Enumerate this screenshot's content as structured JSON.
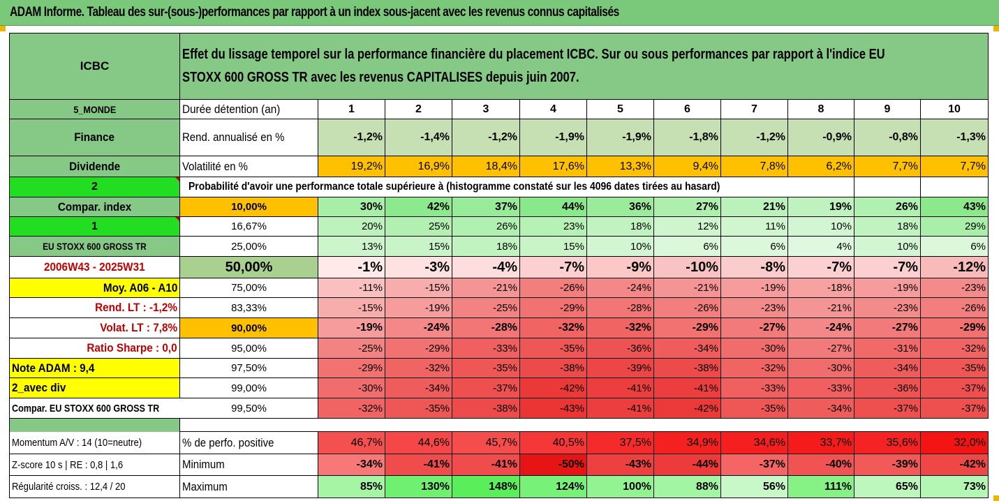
{
  "title": "ADAM Informe. Tableau des sur-(sous-)performances par rapport à un index sous-jacent avec les revenus connus capitalisés",
  "header": {
    "asset": "ICBC",
    "description_line1": "Effet du lissage temporel sur la performance financière du placement ICBC. Sur ou sous performances par rapport à l'indice EU",
    "description_line2": "STOXX 600 GROSS TR avec les revenus CAPITALISES depuis juin 2007."
  },
  "left_labels": {
    "zone": "5_MONDE",
    "sector": "Finance",
    "dividend": "Dividende",
    "val2": "2",
    "compar_index": "Compar. index",
    "val1": "1",
    "index_name": "EU STOXX 600 GROSS TR",
    "period": "2006W43 - 2025W31",
    "moy": "Moy. A06 - A10",
    "rend_lt": "Rend. LT :   -1,2%",
    "volat_lt": "Volat. LT :   7,8%",
    "sharpe": "Ratio Sharpe :   0,0",
    "note": "Note ADAM : 9,4",
    "avec_div": "2_avec div",
    "compar_full": "Compar. EU STOXX 600 GROSS TR",
    "momentum": "Momentum A/V : 14 (10=neutre)",
    "zscore": "Z-score 10 s  | RE : 0,8  | 1,6",
    "regularite": "Régularité croiss. : 12,4 / 20"
  },
  "row_labels": {
    "duree": "Durée détention (an)",
    "rend": "Rend. annualisé en %",
    "volat": "Volatilité en %",
    "proba": "Probabilité d'avoir une performance totale supérieure à (histogramme constaté sur les 4096 dates tirées au hasard)",
    "pct_pos": "% de perfo. positive",
    "minimum": "Minimum",
    "maximum": "Maximum"
  },
  "years": [
    "1",
    "2",
    "3",
    "4",
    "5",
    "6",
    "7",
    "8",
    "9",
    "10"
  ],
  "rend": [
    "-1,2%",
    "-1,4%",
    "-1,2%",
    "-1,9%",
    "-1,9%",
    "-1,8%",
    "-1,2%",
    "-0,9%",
    "-0,8%",
    "-1,3%"
  ],
  "volat": [
    "19,2%",
    "16,9%",
    "18,4%",
    "17,6%",
    "13,3%",
    "9,4%",
    "7,8%",
    "6,2%",
    "7,7%",
    "7,7%"
  ],
  "percentile_rows": [
    {
      "p": "10,00%",
      "values": [
        "30%",
        "42%",
        "37%",
        "44%",
        "36%",
        "27%",
        "21%",
        "19%",
        "26%",
        "43%"
      ]
    },
    {
      "p": "16,67%",
      "values": [
        "20%",
        "25%",
        "26%",
        "23%",
        "18%",
        "12%",
        "11%",
        "10%",
        "18%",
        "29%"
      ]
    },
    {
      "p": "25,00%",
      "values": [
        "13%",
        "15%",
        "18%",
        "15%",
        "10%",
        "6%",
        "6%",
        "4%",
        "10%",
        "6%"
      ]
    },
    {
      "p": "50,00%",
      "values": [
        "-1%",
        "-3%",
        "-4%",
        "-7%",
        "-9%",
        "-10%",
        "-8%",
        "-7%",
        "-7%",
        "-12%"
      ]
    },
    {
      "p": "75,00%",
      "values": [
        "-11%",
        "-15%",
        "-21%",
        "-26%",
        "-24%",
        "-21%",
        "-19%",
        "-18%",
        "-19%",
        "-23%"
      ]
    },
    {
      "p": "83,33%",
      "values": [
        "-15%",
        "-19%",
        "-25%",
        "-29%",
        "-28%",
        "-26%",
        "-23%",
        "-21%",
        "-23%",
        "-26%"
      ]
    },
    {
      "p": "90,00%",
      "values": [
        "-19%",
        "-24%",
        "-28%",
        "-32%",
        "-32%",
        "-29%",
        "-27%",
        "-24%",
        "-27%",
        "-29%"
      ]
    },
    {
      "p": "95,00%",
      "values": [
        "-25%",
        "-29%",
        "-33%",
        "-35%",
        "-36%",
        "-34%",
        "-30%",
        "-27%",
        "-31%",
        "-32%"
      ]
    },
    {
      "p": "97,50%",
      "values": [
        "-29%",
        "-32%",
        "-35%",
        "-38%",
        "-39%",
        "-38%",
        "-32%",
        "-30%",
        "-34%",
        "-35%"
      ]
    },
    {
      "p": "99,00%",
      "values": [
        "-30%",
        "-34%",
        "-37%",
        "-42%",
        "-41%",
        "-41%",
        "-33%",
        "-33%",
        "-36%",
        "-37%"
      ]
    },
    {
      "p": "99,50%",
      "values": [
        "-32%",
        "-35%",
        "-38%",
        "-43%",
        "-41%",
        "-42%",
        "-35%",
        "-34%",
        "-37%",
        "-37%"
      ]
    }
  ],
  "pct_pos": [
    "46,7%",
    "44,6%",
    "45,7%",
    "40,5%",
    "37,5%",
    "34,9%",
    "34,6%",
    "33,7%",
    "35,6%",
    "32,0%"
  ],
  "minimum": [
    "-34%",
    "-41%",
    "-41%",
    "-50%",
    "-43%",
    "-44%",
    "-37%",
    "-40%",
    "-39%",
    "-42%"
  ],
  "maximum": [
    "85%",
    "130%",
    "148%",
    "124%",
    "100%",
    "88%",
    "56%",
    "111%",
    "65%",
    "73%"
  ],
  "colors": {
    "header_green": "#7ac97a",
    "label_green": "#86c886",
    "bright_green": "#22dd22",
    "yellow": "#ffff00",
    "orange": "#ffc000",
    "dark_red_text": "#c00000"
  }
}
